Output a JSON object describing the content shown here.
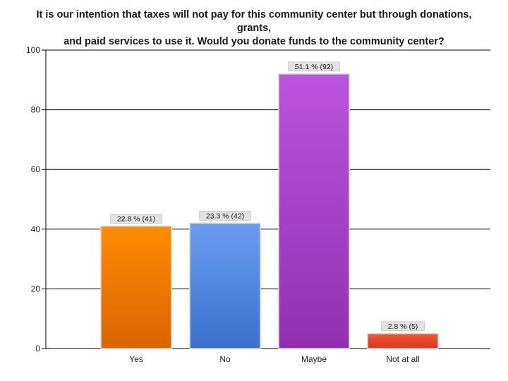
{
  "chart_data": {
    "type": "bar",
    "title_lines": [
      "It is our intention that taxes will not pay for this community center but through donations, grants,",
      "and paid services to use it.  Would you donate funds to the community center?"
    ],
    "categories": [
      "Yes",
      "No",
      "Maybe",
      "Not at all"
    ],
    "values": [
      41,
      42,
      92,
      5
    ],
    "data_labels": [
      "22.8 % (41)",
      "23.3 % (42)",
      "51.1 % (92)",
      "2.8 % (5)"
    ],
    "ylim": [
      0,
      100
    ],
    "yticks": [
      0,
      20,
      40,
      60,
      80,
      100
    ],
    "grid": true,
    "legend": "none",
    "colors": [
      {
        "top": "#ff8c00",
        "bottom": "#d96400"
      },
      {
        "top": "#6b9cf0",
        "bottom": "#3a70cc"
      },
      {
        "top": "#bb55dd",
        "bottom": "#9030b0"
      },
      {
        "top": "#f2553a",
        "bottom": "#d8381e"
      }
    ]
  }
}
